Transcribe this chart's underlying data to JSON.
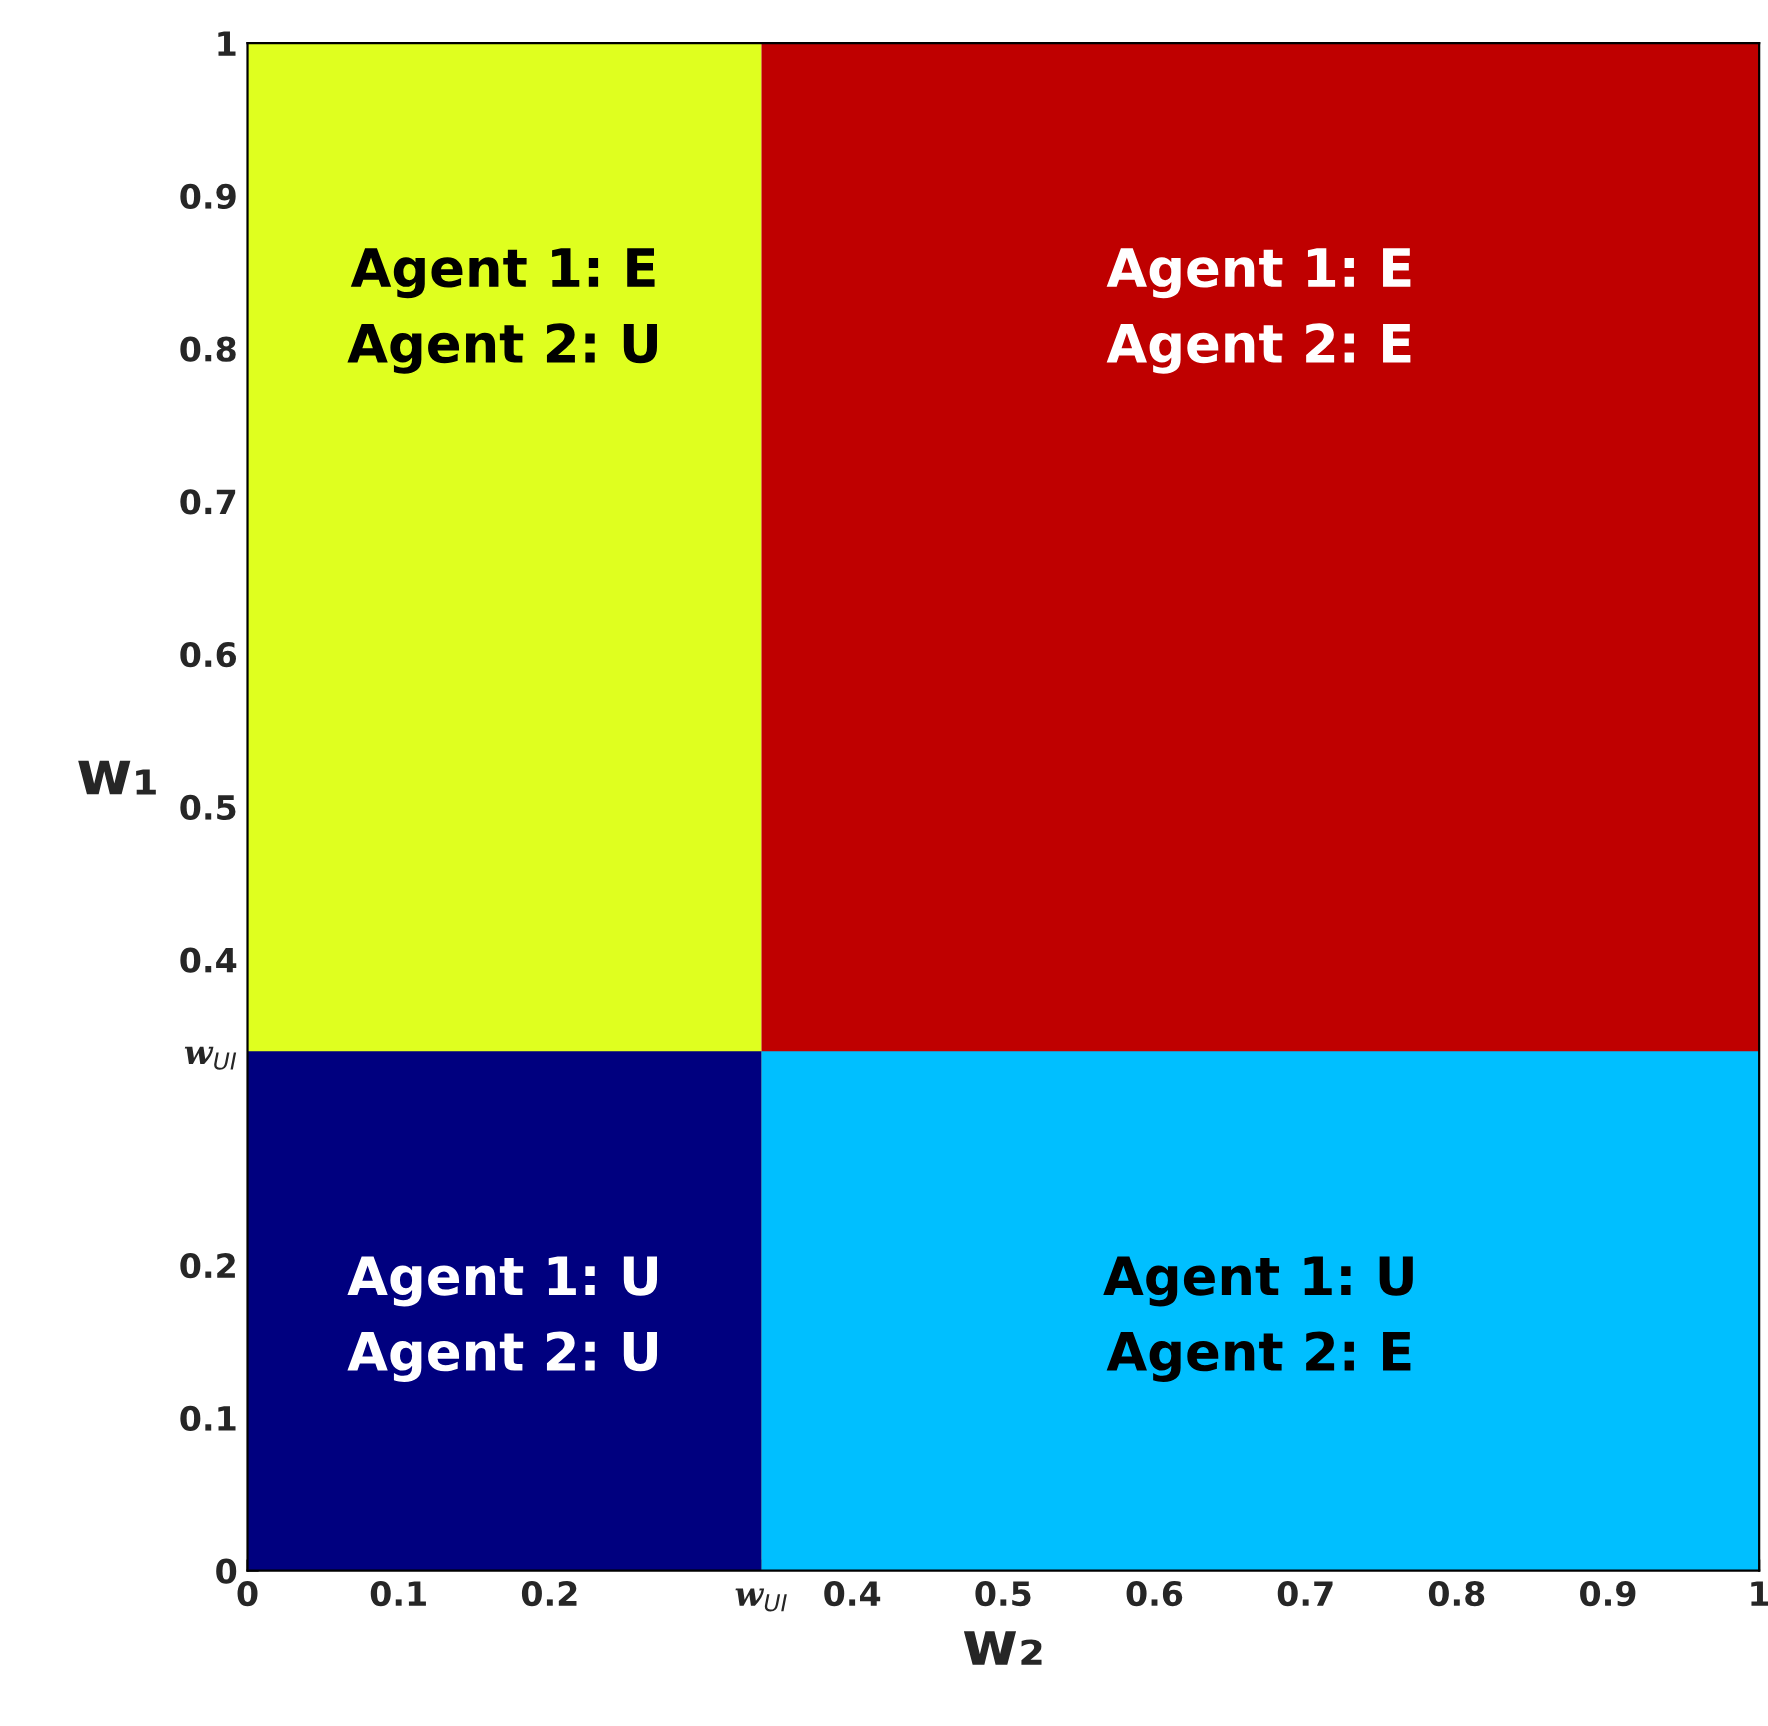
{
  "chart_data": {
    "type": "area",
    "xlabel": "w₂",
    "ylabel": "w₁",
    "series": [
      {
        "color": "#dfff1f",
        "x": [
          0,
          0.34
        ],
        "values": [
          1,
          1
        ]
      },
      {
        "color": "#bf0000",
        "x": [
          0.34,
          1
        ],
        "values": [
          1,
          1
        ]
      },
      {
        "color": "#00007f",
        "x": [
          0,
          0.34
        ],
        "values": [
          0.34,
          0.34
        ]
      },
      {
        "color": "#00bfff",
        "x": [
          0.34,
          1
        ],
        "values": [
          0.34,
          0.34
        ]
      }
    ],
    "annotations": [
      "Agent 1: E\nAgent 2: U",
      "Agent 1: E\nAgent 2: E",
      "Agent 1: U\nAgent 2: U",
      "Agent 1: U\nAgent 2: E"
    ],
    "xlim": [
      0,
      1
    ],
    "ylim": [
      0,
      1
    ],
    "xticks": [
      0,
      0.1,
      0.2,
      {
        "value": 0.34,
        "label": "w$_{UI}$"
      },
      0.4,
      0.5,
      0.6,
      0.7,
      0.8,
      0.9,
      1
    ],
    "yticks": [
      0,
      0.1,
      0.2,
      {
        "value": 0.34,
        "label": "w$_{UI}$"
      },
      0.4,
      0.5,
      0.6,
      0.7,
      0.8,
      0.9,
      1
    ]
  }
}
